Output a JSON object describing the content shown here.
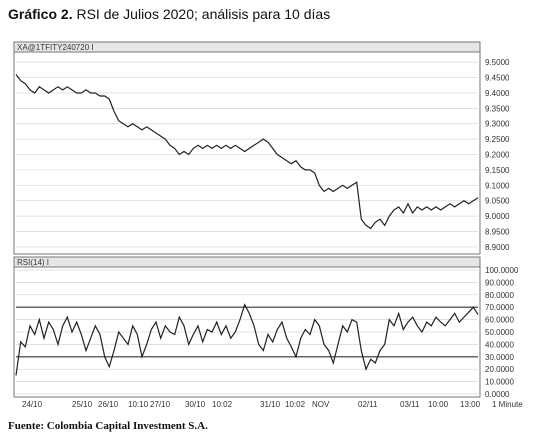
{
  "caption": {
    "label": "Gráfico 2.",
    "text": "RSI de Julios 2020; análisis para 10 días"
  },
  "source": "Fuente: Colombia Capital Investment S.A.",
  "chart_data": [
    {
      "type": "line",
      "panel_label": "XA@1TFITY240720 I",
      "yticks": [
        "9.5000",
        "9.4500",
        "9.4000",
        "9.3500",
        "9.3000",
        "9.2500",
        "9.2000",
        "9.1500",
        "9.1000",
        "9.0500",
        "9.0000",
        "8.9500",
        "8.9000"
      ],
      "ylim": [
        8.89,
        9.52
      ],
      "grid": true,
      "series": [
        {
          "values": [
            9.46,
            9.44,
            9.43,
            9.41,
            9.4,
            9.42,
            9.41,
            9.4,
            9.41,
            9.42,
            9.41,
            9.42,
            9.41,
            9.4,
            9.4,
            9.41,
            9.4,
            9.4,
            9.39,
            9.39,
            9.38,
            9.34,
            9.31,
            9.3,
            9.29,
            9.3,
            9.29,
            9.28,
            9.29,
            9.28,
            9.27,
            9.26,
            9.25,
            9.23,
            9.22,
            9.2,
            9.21,
            9.2,
            9.22,
            9.23,
            9.22,
            9.23,
            9.22,
            9.23,
            9.22,
            9.23,
            9.22,
            9.23,
            9.22,
            9.21,
            9.22,
            9.23,
            9.24,
            9.25,
            9.24,
            9.22,
            9.2,
            9.19,
            9.18,
            9.17,
            9.18,
            9.16,
            9.15,
            9.15,
            9.14,
            9.1,
            9.08,
            9.09,
            9.08,
            9.09,
            9.1,
            9.09,
            9.1,
            9.11,
            8.99,
            8.97,
            8.96,
            8.98,
            8.99,
            8.97,
            9.0,
            9.02,
            9.03,
            9.01,
            9.04,
            9.01,
            9.03,
            9.02,
            9.03,
            9.02,
            9.03,
            9.02,
            9.03,
            9.04,
            9.03,
            9.04,
            9.05,
            9.04,
            9.05,
            9.06
          ]
        }
      ]
    },
    {
      "type": "line",
      "panel_label": "RSI(14) I",
      "yticks": [
        "100.0000",
        "90.0000",
        "80.0000",
        "70.0000",
        "60.0000",
        "50.0000",
        "40.0000",
        "30.0000",
        "20.0000",
        "10.0000",
        "0.0000"
      ],
      "ylim": [
        0,
        100
      ],
      "reference_lines": [
        70,
        30
      ],
      "x_ticks": [
        "24/10",
        "25/10",
        "26/10",
        "10:10",
        "27/10",
        "30/10",
        "10:02",
        "31/10",
        "10:02",
        "NOV",
        "02/11",
        "03/11",
        "10:00",
        "13:00",
        "1 Minute"
      ],
      "grid": true,
      "series": [
        {
          "values": [
            15,
            42,
            38,
            55,
            48,
            60,
            45,
            58,
            52,
            40,
            55,
            62,
            50,
            58,
            48,
            35,
            45,
            55,
            48,
            30,
            22,
            35,
            50,
            45,
            40,
            55,
            48,
            30,
            40,
            52,
            58,
            45,
            55,
            50,
            48,
            62,
            55,
            40,
            48,
            55,
            42,
            52,
            50,
            58,
            48,
            55,
            45,
            50,
            60,
            72,
            65,
            55,
            40,
            35,
            48,
            42,
            52,
            58,
            45,
            38,
            30,
            45,
            52,
            48,
            60,
            55,
            40,
            35,
            25,
            40,
            55,
            50,
            60,
            58,
            35,
            20,
            28,
            25,
            35,
            40,
            60,
            55,
            65,
            52,
            58,
            62,
            55,
            50,
            58,
            55,
            62,
            58,
            55,
            60,
            65,
            58,
            62,
            66,
            70,
            64
          ]
        }
      ]
    }
  ]
}
